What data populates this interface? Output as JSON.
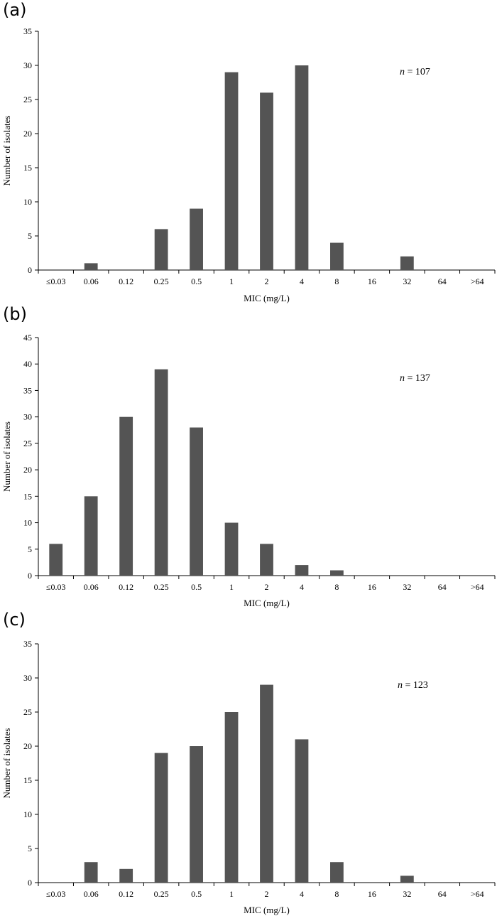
{
  "panels": [
    {
      "letter": "(a)",
      "annotation_prefix": "n",
      "annotation_value": " = 107",
      "chart_data": {
        "type": "bar",
        "categories": [
          "≤0.03",
          "0.06",
          "0.12",
          "0.25",
          "0.5",
          "1",
          "2",
          "4",
          "8",
          "16",
          "32",
          "64",
          ">64"
        ],
        "values": [
          0,
          1,
          0,
          6,
          9,
          29,
          26,
          30,
          4,
          0,
          2,
          0,
          0
        ],
        "xlabel": "MIC (mg/L)",
        "ylabel": "Number of isolates",
        "ylim": [
          0,
          35
        ],
        "yticks": [
          0,
          5,
          10,
          15,
          20,
          25,
          30,
          35
        ],
        "bar_color": "#545454"
      }
    },
    {
      "letter": "(b)",
      "annotation_prefix": "n",
      "annotation_value": " = 137",
      "chart_data": {
        "type": "bar",
        "categories": [
          "≤0.03",
          "0.06",
          "0.12",
          "0.25",
          "0.5",
          "1",
          "2",
          "4",
          "8",
          "16",
          "32",
          "64",
          ">64"
        ],
        "values": [
          6,
          15,
          30,
          39,
          28,
          10,
          6,
          2,
          1,
          0,
          0,
          0,
          0
        ],
        "xlabel": "MIC (mg/L)",
        "ylabel": "Number of isolates",
        "ylim": [
          0,
          45
        ],
        "yticks": [
          0,
          5,
          10,
          15,
          20,
          25,
          30,
          35,
          40,
          45
        ],
        "bar_color": "#545454"
      }
    },
    {
      "letter": "(c)",
      "annotation_prefix": "n",
      "annotation_value": " = 123",
      "chart_data": {
        "type": "bar",
        "categories": [
          "≤0.03",
          "0.06",
          "0.12",
          "0.25",
          "0.5",
          "1",
          "2",
          "4",
          "8",
          "16",
          "32",
          "64",
          ">64"
        ],
        "values": [
          0,
          3,
          2,
          19,
          20,
          25,
          29,
          21,
          3,
          0,
          1,
          0,
          0
        ],
        "xlabel": "MIC (mg/L)",
        "ylabel": "Number of isolates",
        "ylim": [
          0,
          35
        ],
        "yticks": [
          0,
          5,
          10,
          15,
          20,
          25,
          30,
          35
        ],
        "bar_color": "#545454"
      }
    }
  ]
}
